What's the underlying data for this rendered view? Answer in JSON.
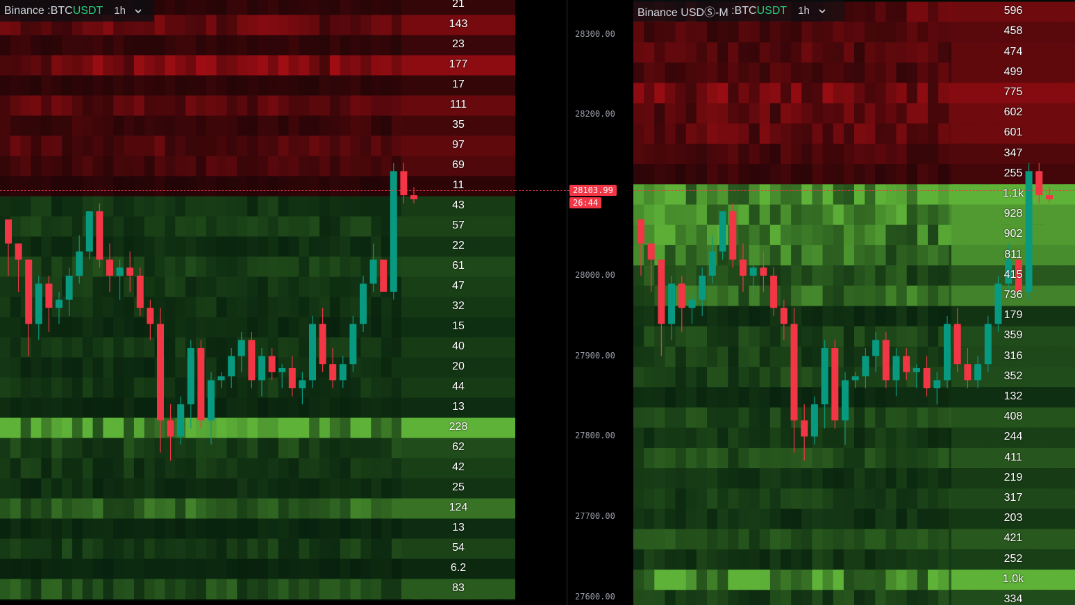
{
  "left_panel": {
    "exchange": "Binance",
    "symbol_base": "BTC",
    "symbol_quote": "USDT",
    "timeframe": "1h",
    "book_levels": [
      "21",
      "143",
      "23",
      "177",
      "17",
      "111",
      "35",
      "97",
      "69",
      "11",
      "43",
      "57",
      "22",
      "61",
      "47",
      "32",
      "15",
      "40",
      "20",
      "44",
      "13",
      "228",
      "62",
      "42",
      "25",
      "124",
      "13",
      "54",
      "6.2",
      "83"
    ],
    "level_sides": [
      "ask",
      "ask",
      "ask",
      "ask",
      "ask",
      "ask",
      "ask",
      "ask",
      "ask",
      "ask",
      "bid",
      "bid",
      "bid",
      "bid",
      "bid",
      "bid",
      "bid",
      "bid",
      "bid",
      "bid",
      "bid",
      "bid",
      "bid",
      "bid",
      "bid",
      "bid",
      "bid",
      "bid",
      "bid",
      "bid"
    ],
    "level_intensity": [
      0.15,
      0.6,
      0.2,
      0.75,
      0.15,
      0.5,
      0.25,
      0.45,
      0.35,
      0.1,
      0.2,
      0.25,
      0.15,
      0.28,
      0.22,
      0.18,
      0.12,
      0.2,
      0.15,
      0.2,
      0.1,
      1.0,
      0.3,
      0.22,
      0.15,
      0.55,
      0.1,
      0.25,
      0.08,
      0.4
    ]
  },
  "right_panel": {
    "exchange": "Binance USDⓈ-M",
    "symbol_base": "BTC",
    "symbol_quote": "USDT",
    "timeframe": "1h",
    "book_levels": [
      "596",
      "458",
      "474",
      "499",
      "775",
      "602",
      "601",
      "347",
      "255",
      "1.1k",
      "928",
      "902",
      "811",
      "415",
      "736",
      "179",
      "359",
      "316",
      "352",
      "132",
      "408",
      "244",
      "411",
      "219",
      "317",
      "203",
      "421",
      "252",
      "1.0k",
      "334"
    ],
    "level_sides": [
      "ask",
      "ask",
      "ask",
      "ask",
      "ask",
      "ask",
      "ask",
      "ask",
      "ask",
      "bid",
      "bid",
      "bid",
      "bid",
      "bid",
      "bid",
      "bid",
      "bid",
      "bid",
      "bid",
      "bid",
      "bid",
      "bid",
      "bid",
      "bid",
      "bid",
      "bid",
      "bid",
      "bid",
      "bid",
      "bid"
    ],
    "level_intensity": [
      0.55,
      0.4,
      0.45,
      0.45,
      0.7,
      0.55,
      0.55,
      0.35,
      0.25,
      1.0,
      0.8,
      0.8,
      0.72,
      0.38,
      0.65,
      0.15,
      0.3,
      0.28,
      0.3,
      0.12,
      0.35,
      0.22,
      0.36,
      0.2,
      0.28,
      0.18,
      0.38,
      0.22,
      0.95,
      0.3
    ]
  },
  "axis": {
    "ticks": [
      "28300.00",
      "28200.00",
      "28000.00",
      "27900.00",
      "27800.00",
      "27700.00",
      "27600.00"
    ],
    "current_price": "28103.99",
    "countdown": "26:44"
  },
  "colors": {
    "up": "#089981",
    "down": "#f23645",
    "sym": "#26d07c"
  },
  "chart_data": {
    "type": "candlestick",
    "ylim": [
      27590,
      28345
    ],
    "current_price": 28103.99,
    "candles": [
      [
        28070,
        28070,
        28000,
        28040
      ],
      [
        28040,
        28040,
        27980,
        28020
      ],
      [
        28020,
        28020,
        27900,
        27940
      ],
      [
        27940,
        28000,
        27920,
        27990
      ],
      [
        27990,
        28000,
        27930,
        27960
      ],
      [
        27960,
        27980,
        27940,
        27970
      ],
      [
        27970,
        28010,
        27950,
        28000
      ],
      [
        28000,
        28050,
        27990,
        28030
      ],
      [
        28030,
        28080,
        28020,
        28080
      ],
      [
        28080,
        28090,
        28010,
        28020
      ],
      [
        28020,
        28040,
        27980,
        28000
      ],
      [
        28000,
        28020,
        27970,
        28010
      ],
      [
        28010,
        28030,
        27980,
        28000
      ],
      [
        28000,
        28010,
        27950,
        27960
      ],
      [
        27960,
        27970,
        27920,
        27940
      ],
      [
        27940,
        27960,
        27780,
        27820
      ],
      [
        27820,
        27840,
        27770,
        27800
      ],
      [
        27800,
        27850,
        27790,
        27840
      ],
      [
        27840,
        27920,
        27810,
        27910
      ],
      [
        27910,
        27920,
        27810,
        27820
      ],
      [
        27820,
        27880,
        27790,
        27870
      ],
      [
        27870,
        27880,
        27860,
        27875
      ],
      [
        27875,
        27910,
        27860,
        27900
      ],
      [
        27900,
        27930,
        27880,
        27920
      ],
      [
        27920,
        27930,
        27860,
        27870
      ],
      [
        27870,
        27910,
        27850,
        27900
      ],
      [
        27900,
        27910,
        27870,
        27880
      ],
      [
        27880,
        27890,
        27860,
        27885
      ],
      [
        27885,
        27900,
        27850,
        27860
      ],
      [
        27860,
        27880,
        27840,
        27870
      ],
      [
        27870,
        27950,
        27860,
        27940
      ],
      [
        27940,
        27960,
        27880,
        27890
      ],
      [
        27890,
        27910,
        27860,
        27870
      ],
      [
        27870,
        27900,
        27860,
        27890
      ],
      [
        27890,
        27950,
        27880,
        27940
      ],
      [
        27940,
        28000,
        27930,
        27990
      ],
      [
        27990,
        28040,
        27980,
        28020
      ],
      [
        28020,
        28020,
        27980,
        27980
      ],
      [
        27980,
        28140,
        27970,
        28130
      ],
      [
        28130,
        28140,
        28090,
        28100
      ],
      [
        28100,
        28110,
        28090,
        28095
      ]
    ]
  }
}
